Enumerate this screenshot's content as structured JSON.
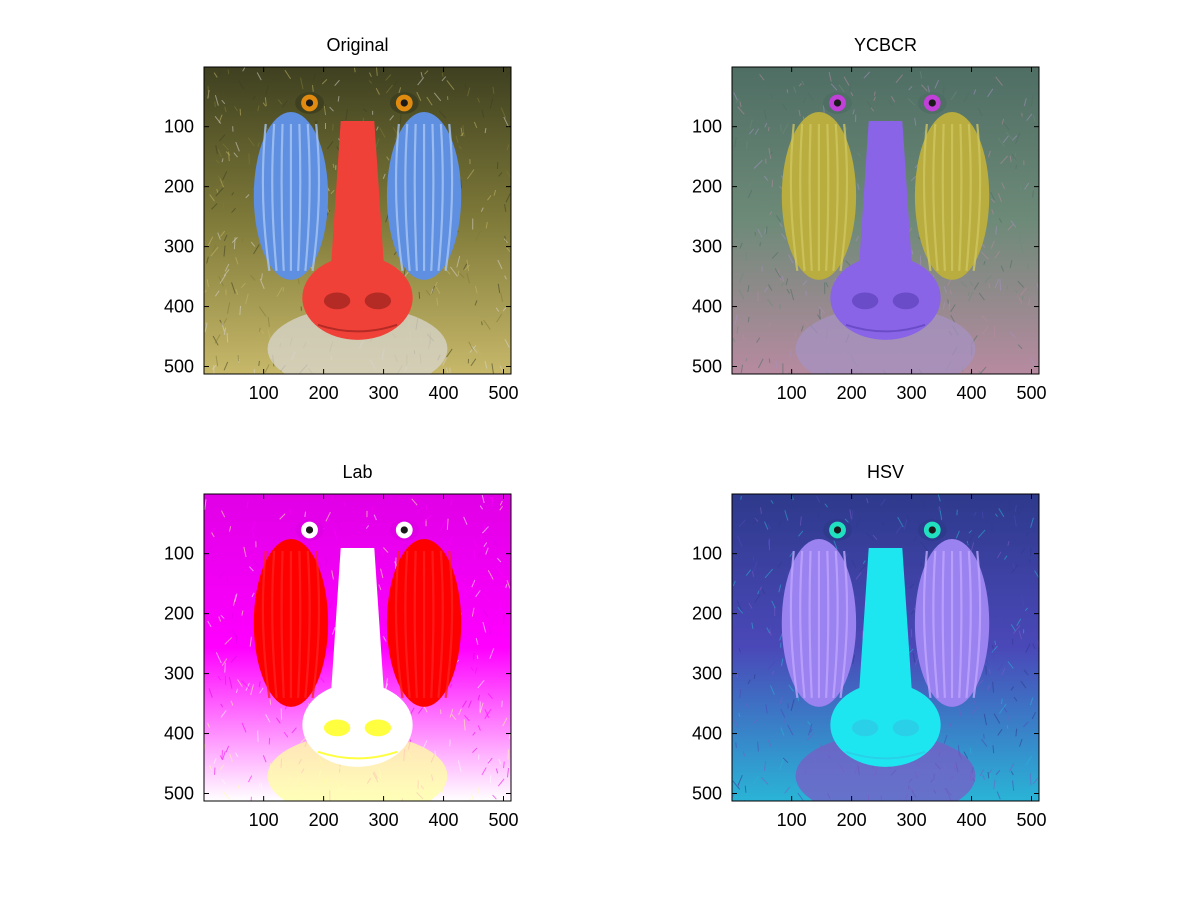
{
  "figure": {
    "background": "#ffffff",
    "panels": [
      {
        "id": "original",
        "title": "Original",
        "xticks": [
          "100",
          "200",
          "300",
          "400",
          "500"
        ],
        "yticks": [
          "100",
          "200",
          "300",
          "400",
          "500"
        ],
        "palette": {
          "fur": "#7f7a39",
          "fur_dark": "#3e4020",
          "fur_light": "#c7b86a",
          "cheek": "#5f8fe0",
          "cheek_light": "#a8c6f2",
          "nose": "#ef4138",
          "nose_dark": "#b42a24",
          "eye": "#e08b10",
          "beard": "#d8d6cf"
        }
      },
      {
        "id": "ycbcr",
        "title": "YCBCR",
        "xticks": [
          "100",
          "200",
          "300",
          "400",
          "500"
        ],
        "yticks": [
          "100",
          "200",
          "300",
          "400",
          "500"
        ],
        "palette": {
          "fur": "#6d8a78",
          "fur_dark": "#4f6e64",
          "fur_light": "#b78aa0",
          "cheek": "#b8ad3e",
          "cheek_light": "#d0c660",
          "nose": "#8a64e6",
          "nose_dark": "#6a4cc8",
          "eye": "#c040d8",
          "beard": "#a691c2"
        }
      },
      {
        "id": "lab",
        "title": "Lab",
        "xticks": [
          "100",
          "200",
          "300",
          "400",
          "500"
        ],
        "yticks": [
          "100",
          "200",
          "300",
          "400",
          "500"
        ],
        "palette": {
          "fur": "#ff00ff",
          "fur_dark": "#e000e6",
          "fur_light": "#ffffff",
          "cheek": "#ff0000",
          "cheek_light": "#ff2020",
          "nose": "#ffffff",
          "nose_dark": "#ffff40",
          "eye": "#ffffff",
          "beard": "#ffffa0"
        }
      },
      {
        "id": "hsv",
        "title": "HSV",
        "xticks": [
          "100",
          "200",
          "300",
          "400",
          "500"
        ],
        "yticks": [
          "100",
          "200",
          "300",
          "400",
          "500"
        ],
        "palette": {
          "fur": "#4a48b8",
          "fur_dark": "#2e3a8c",
          "fur_light": "#2ab4d6",
          "cheek": "#9a82f0",
          "cheek_light": "#c0a6ff",
          "nose": "#1ee6f0",
          "nose_dark": "#2ad0e8",
          "eye": "#20e0c0",
          "beard": "#7a5cc6"
        }
      }
    ]
  }
}
